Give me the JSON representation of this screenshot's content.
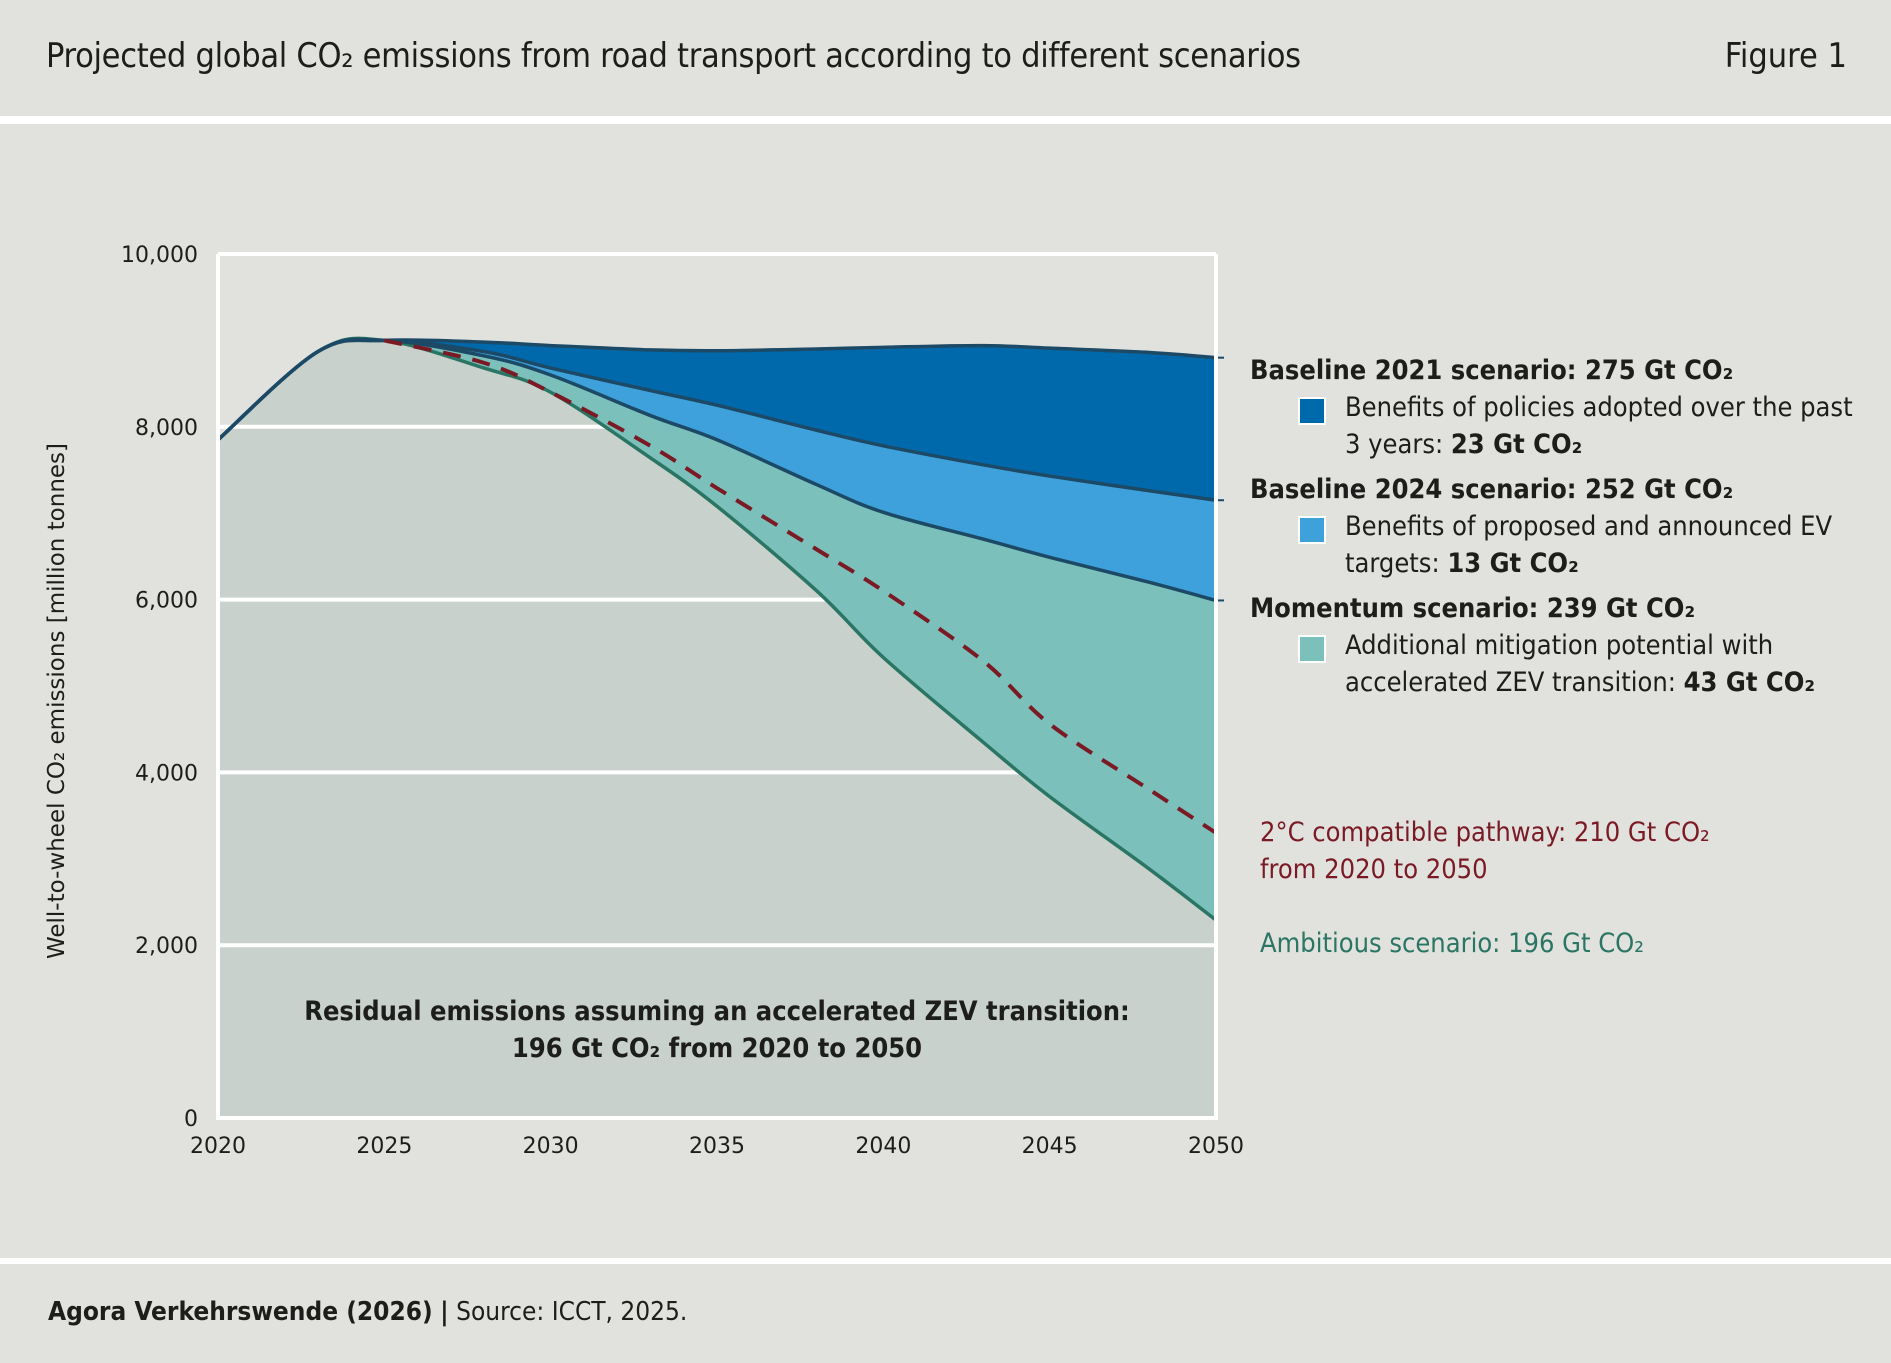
{
  "header": {
    "title": "Projected global CO₂ emissions from road transport according to different scenarios",
    "figure_label": "Figure 1"
  },
  "footer": {
    "organization": "Agora Verkehrswende (2026)",
    "separator": "|",
    "source": "Source: ICCT, 2025."
  },
  "colors": {
    "background": "#e1e2de",
    "plot_background": "#e1e2de",
    "residual_fill": "#c8d1cc",
    "baseline2021_band": "#0069ab",
    "baseline2024_band": "#3fa1dc",
    "momentum_band": "#7cc0bc",
    "outline_dark": "#1c4a66",
    "ambitious_line": "#2a7563",
    "pathway_2c": "#7a1a24"
  },
  "legend": {
    "baseline2021": {
      "head": "Baseline 2021 scenario: 275 Gt CO₂",
      "item_text": "Benefits of policies adopted over the past 3 years: ",
      "item_value": "23 Gt CO₂"
    },
    "baseline2024": {
      "head": "Baseline 2024 scenario: 252 Gt CO₂",
      "item_text": "Benefits of proposed and announced EV targets: ",
      "item_value": "13 Gt CO₂"
    },
    "momentum": {
      "head": "Momentum scenario: 239 Gt CO₂",
      "item_text": "Additional mitigation potential with accelerated ZEV transition: ",
      "item_value": "43 Gt CO₂"
    },
    "pathway_2c": {
      "line1": "2°C compatible pathway: 210 Gt CO₂",
      "line2": "from 2020 to 2050"
    },
    "ambitious": "Ambitious scenario: 196 Gt CO₂"
  },
  "annotation": {
    "line1": "Residual emissions assuming an accelerated ZEV transition:",
    "line2": "196 Gt CO₂ from 2020 to 2050"
  },
  "chart_data": {
    "type": "area",
    "title": "Projected global CO₂ emissions from road transport according to different scenarios",
    "xlabel": "",
    "ylabel": "Well-to-wheel CO₂ emissions [million tonnes]",
    "xlim": [
      2020,
      2050
    ],
    "ylim": [
      0,
      10000
    ],
    "x_ticks": [
      "2020",
      "2025",
      "2030",
      "2035",
      "2040",
      "2045",
      "2050"
    ],
    "x_tick_values": [
      2020,
      2025,
      2030,
      2035,
      2040,
      2045,
      2050
    ],
    "y_ticks": [
      "0",
      "2,000",
      "4,000",
      "6,000",
      "8,000",
      "10,000"
    ],
    "y_tick_values": [
      0,
      2000,
      4000,
      6000,
      8000,
      10000
    ],
    "grid": true,
    "legend_position": "right",
    "x": [
      2020,
      2023,
      2025,
      2028,
      2030,
      2033,
      2035,
      2038,
      2040,
      2043,
      2045,
      2048,
      2050
    ],
    "series": [
      {
        "name": "Baseline 2021 scenario",
        "total": "275 Gt CO₂",
        "values": [
          7850,
          8870,
          9000,
          8980,
          8940,
          8890,
          8880,
          8900,
          8920,
          8940,
          8910,
          8860,
          8800
        ]
      },
      {
        "name": "Baseline 2024 scenario",
        "total": "252 Gt CO₂",
        "values": [
          7850,
          8870,
          9000,
          8870,
          8680,
          8420,
          8250,
          7960,
          7780,
          7560,
          7430,
          7260,
          7150
        ]
      },
      {
        "name": "Momentum scenario",
        "total": "239 Gt CO₂",
        "values": [
          7850,
          8870,
          9000,
          8820,
          8600,
          8130,
          7850,
          7330,
          7010,
          6700,
          6490,
          6200,
          5990
        ]
      },
      {
        "name": "Ambitious scenario",
        "total": "196 Gt CO₂",
        "values": [
          7850,
          8870,
          9000,
          8680,
          8400,
          7640,
          7080,
          6100,
          5330,
          4350,
          3720,
          2880,
          2290
        ]
      },
      {
        "name": "2°C compatible pathway",
        "total": "210 Gt CO₂",
        "style": "dashed",
        "values": [
          7850,
          8870,
          9000,
          8740,
          8400,
          7780,
          7290,
          6580,
          6100,
          5290,
          4560,
          3800,
          3300
        ]
      }
    ],
    "bands": [
      {
        "name": "Benefits of policies adopted over the past 3 years",
        "value": "23 Gt CO₂",
        "between": [
          "Baseline 2021 scenario",
          "Baseline 2024 scenario"
        ]
      },
      {
        "name": "Benefits of proposed and announced EV targets",
        "value": "13 Gt CO₂",
        "between": [
          "Baseline 2024 scenario",
          "Momentum scenario"
        ]
      },
      {
        "name": "Additional mitigation potential with accelerated ZEV transition",
        "value": "43 Gt CO₂",
        "between": [
          "Momentum scenario",
          "Ambitious scenario"
        ]
      }
    ]
  }
}
